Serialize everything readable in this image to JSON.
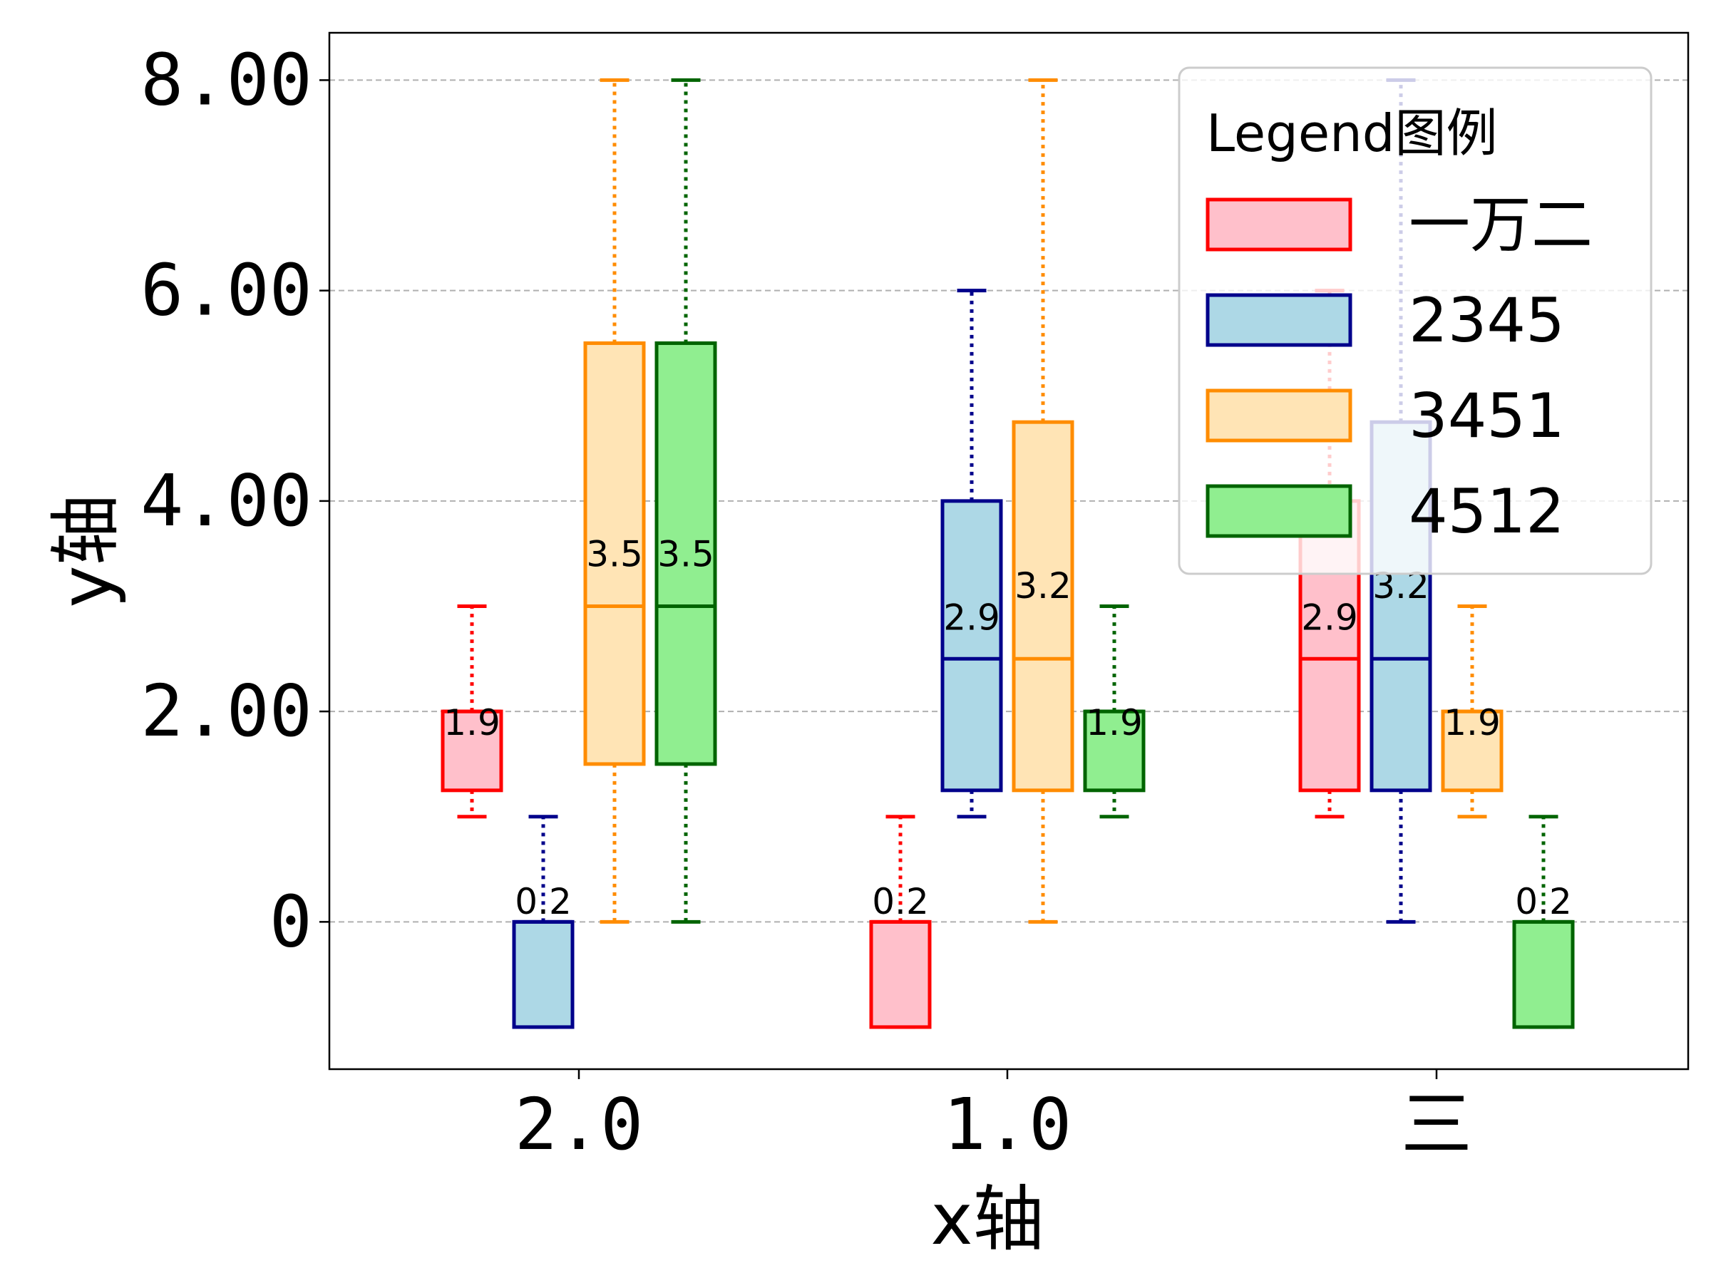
{
  "chart_data": {
    "type": "box",
    "categories": [
      "2.0",
      "1.0",
      "三"
    ],
    "xlabel": "x轴",
    "ylabel": "y轴",
    "ylim": [
      -1.4,
      8.45
    ],
    "yticks": [
      0,
      2,
      4,
      6,
      8
    ],
    "ytick_labels": [
      "0",
      "2.00",
      "4.00",
      "6.00",
      "8.00"
    ],
    "grid": "y-dashed",
    "legend": {
      "title": "Legend图例",
      "placement": "top-right"
    },
    "series": [
      {
        "name": "一万二",
        "face": "#FFC0CB",
        "edge": "#FF0000",
        "boxes": [
          {
            "whislo": 1,
            "q1": 1.25,
            "median": 2,
            "q3": 2,
            "whishi": 3,
            "mean_label": "1.9"
          },
          {
            "whislo": -1,
            "q1": -1,
            "median": 0,
            "q3": 0,
            "whishi": 1,
            "mean_label": "0.2"
          },
          {
            "whislo": 1,
            "q1": 1.25,
            "median": 2.5,
            "q3": 4,
            "whishi": 6,
            "mean_label": "2.9"
          }
        ]
      },
      {
        "name": "2345",
        "face": "#ADD8E6",
        "edge": "#00008B",
        "boxes": [
          {
            "whislo": -1,
            "q1": -1,
            "median": 0,
            "q3": 0,
            "whishi": 1,
            "mean_label": "0.2"
          },
          {
            "whislo": 1,
            "q1": 1.25,
            "median": 2.5,
            "q3": 4,
            "whishi": 6,
            "mean_label": "2.9"
          },
          {
            "whislo": 0,
            "q1": 1.25,
            "median": 2.5,
            "q3": 4.75,
            "whishi": 8,
            "mean_label": "3.2"
          }
        ]
      },
      {
        "name": "3451",
        "face": "#FFE4B5",
        "edge": "#FF8C00",
        "boxes": [
          {
            "whislo": 0,
            "q1": 1.5,
            "median": 3,
            "q3": 5.5,
            "whishi": 8,
            "mean_label": "3.5"
          },
          {
            "whislo": 0,
            "q1": 1.25,
            "median": 2.5,
            "q3": 4.75,
            "whishi": 8,
            "mean_label": "3.2"
          },
          {
            "whislo": 1,
            "q1": 1.25,
            "median": 2,
            "q3": 2,
            "whishi": 3,
            "mean_label": "1.9"
          }
        ]
      },
      {
        "name": "4512",
        "face": "#90EE90",
        "edge": "#006400",
        "boxes": [
          {
            "whislo": 0,
            "q1": 1.5,
            "median": 3,
            "q3": 5.5,
            "whishi": 8,
            "mean_label": "3.5"
          },
          {
            "whislo": 1,
            "q1": 1.25,
            "median": 2,
            "q3": 2,
            "whishi": 3,
            "mean_label": "1.9"
          },
          {
            "whislo": -1,
            "q1": -1,
            "median": 0,
            "q3": 0,
            "whishi": 1,
            "mean_label": "0.2"
          }
        ]
      }
    ]
  }
}
